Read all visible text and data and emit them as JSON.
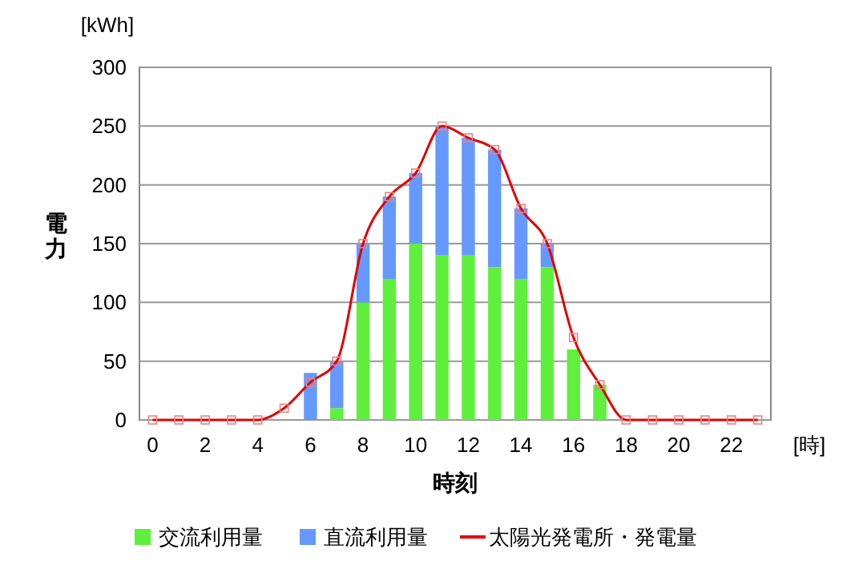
{
  "chart_data": {
    "type": "bar",
    "stacked": true,
    "xlabel": "時刻",
    "ylabel": "電力",
    "annotations": [
      "[kWh]",
      "[時]"
    ],
    "categories": [
      "0",
      null,
      "2",
      null,
      "4",
      null,
      "6",
      null,
      "8",
      null,
      "10",
      null,
      "12",
      null,
      "14",
      null,
      "16",
      null,
      "18",
      null,
      "20",
      null,
      "22",
      null
    ],
    "series": [
      {
        "name": "交流利用量",
        "color": "#5ef03c",
        "values": [
          null,
          null,
          null,
          null,
          null,
          null,
          null,
          10,
          100,
          120,
          150,
          140,
          140,
          130,
          120,
          130,
          60,
          30,
          null,
          null,
          null,
          null,
          null,
          null
        ]
      },
      {
        "name": "直流利用量",
        "color": "#6699ff",
        "values": [
          null,
          null,
          null,
          null,
          null,
          null,
          40,
          40,
          50,
          70,
          60,
          110,
          100,
          100,
          60,
          20,
          null,
          null,
          null,
          null,
          null,
          null,
          null,
          null
        ]
      },
      {
        "name": "太陽光発電所・発電量",
        "type": "line",
        "color": "#e00000",
        "marker": "square",
        "values": [
          0,
          0,
          0,
          0,
          0,
          10,
          32,
          50,
          150,
          190,
          210,
          250,
          240,
          230,
          180,
          150,
          70,
          30,
          0,
          0,
          0,
          0,
          0,
          0
        ]
      }
    ],
    "ylim": [
      0,
      300
    ],
    "yticks": [
      0,
      50,
      100,
      150,
      200,
      250,
      300
    ],
    "grid": "y",
    "legend": "bottom"
  }
}
